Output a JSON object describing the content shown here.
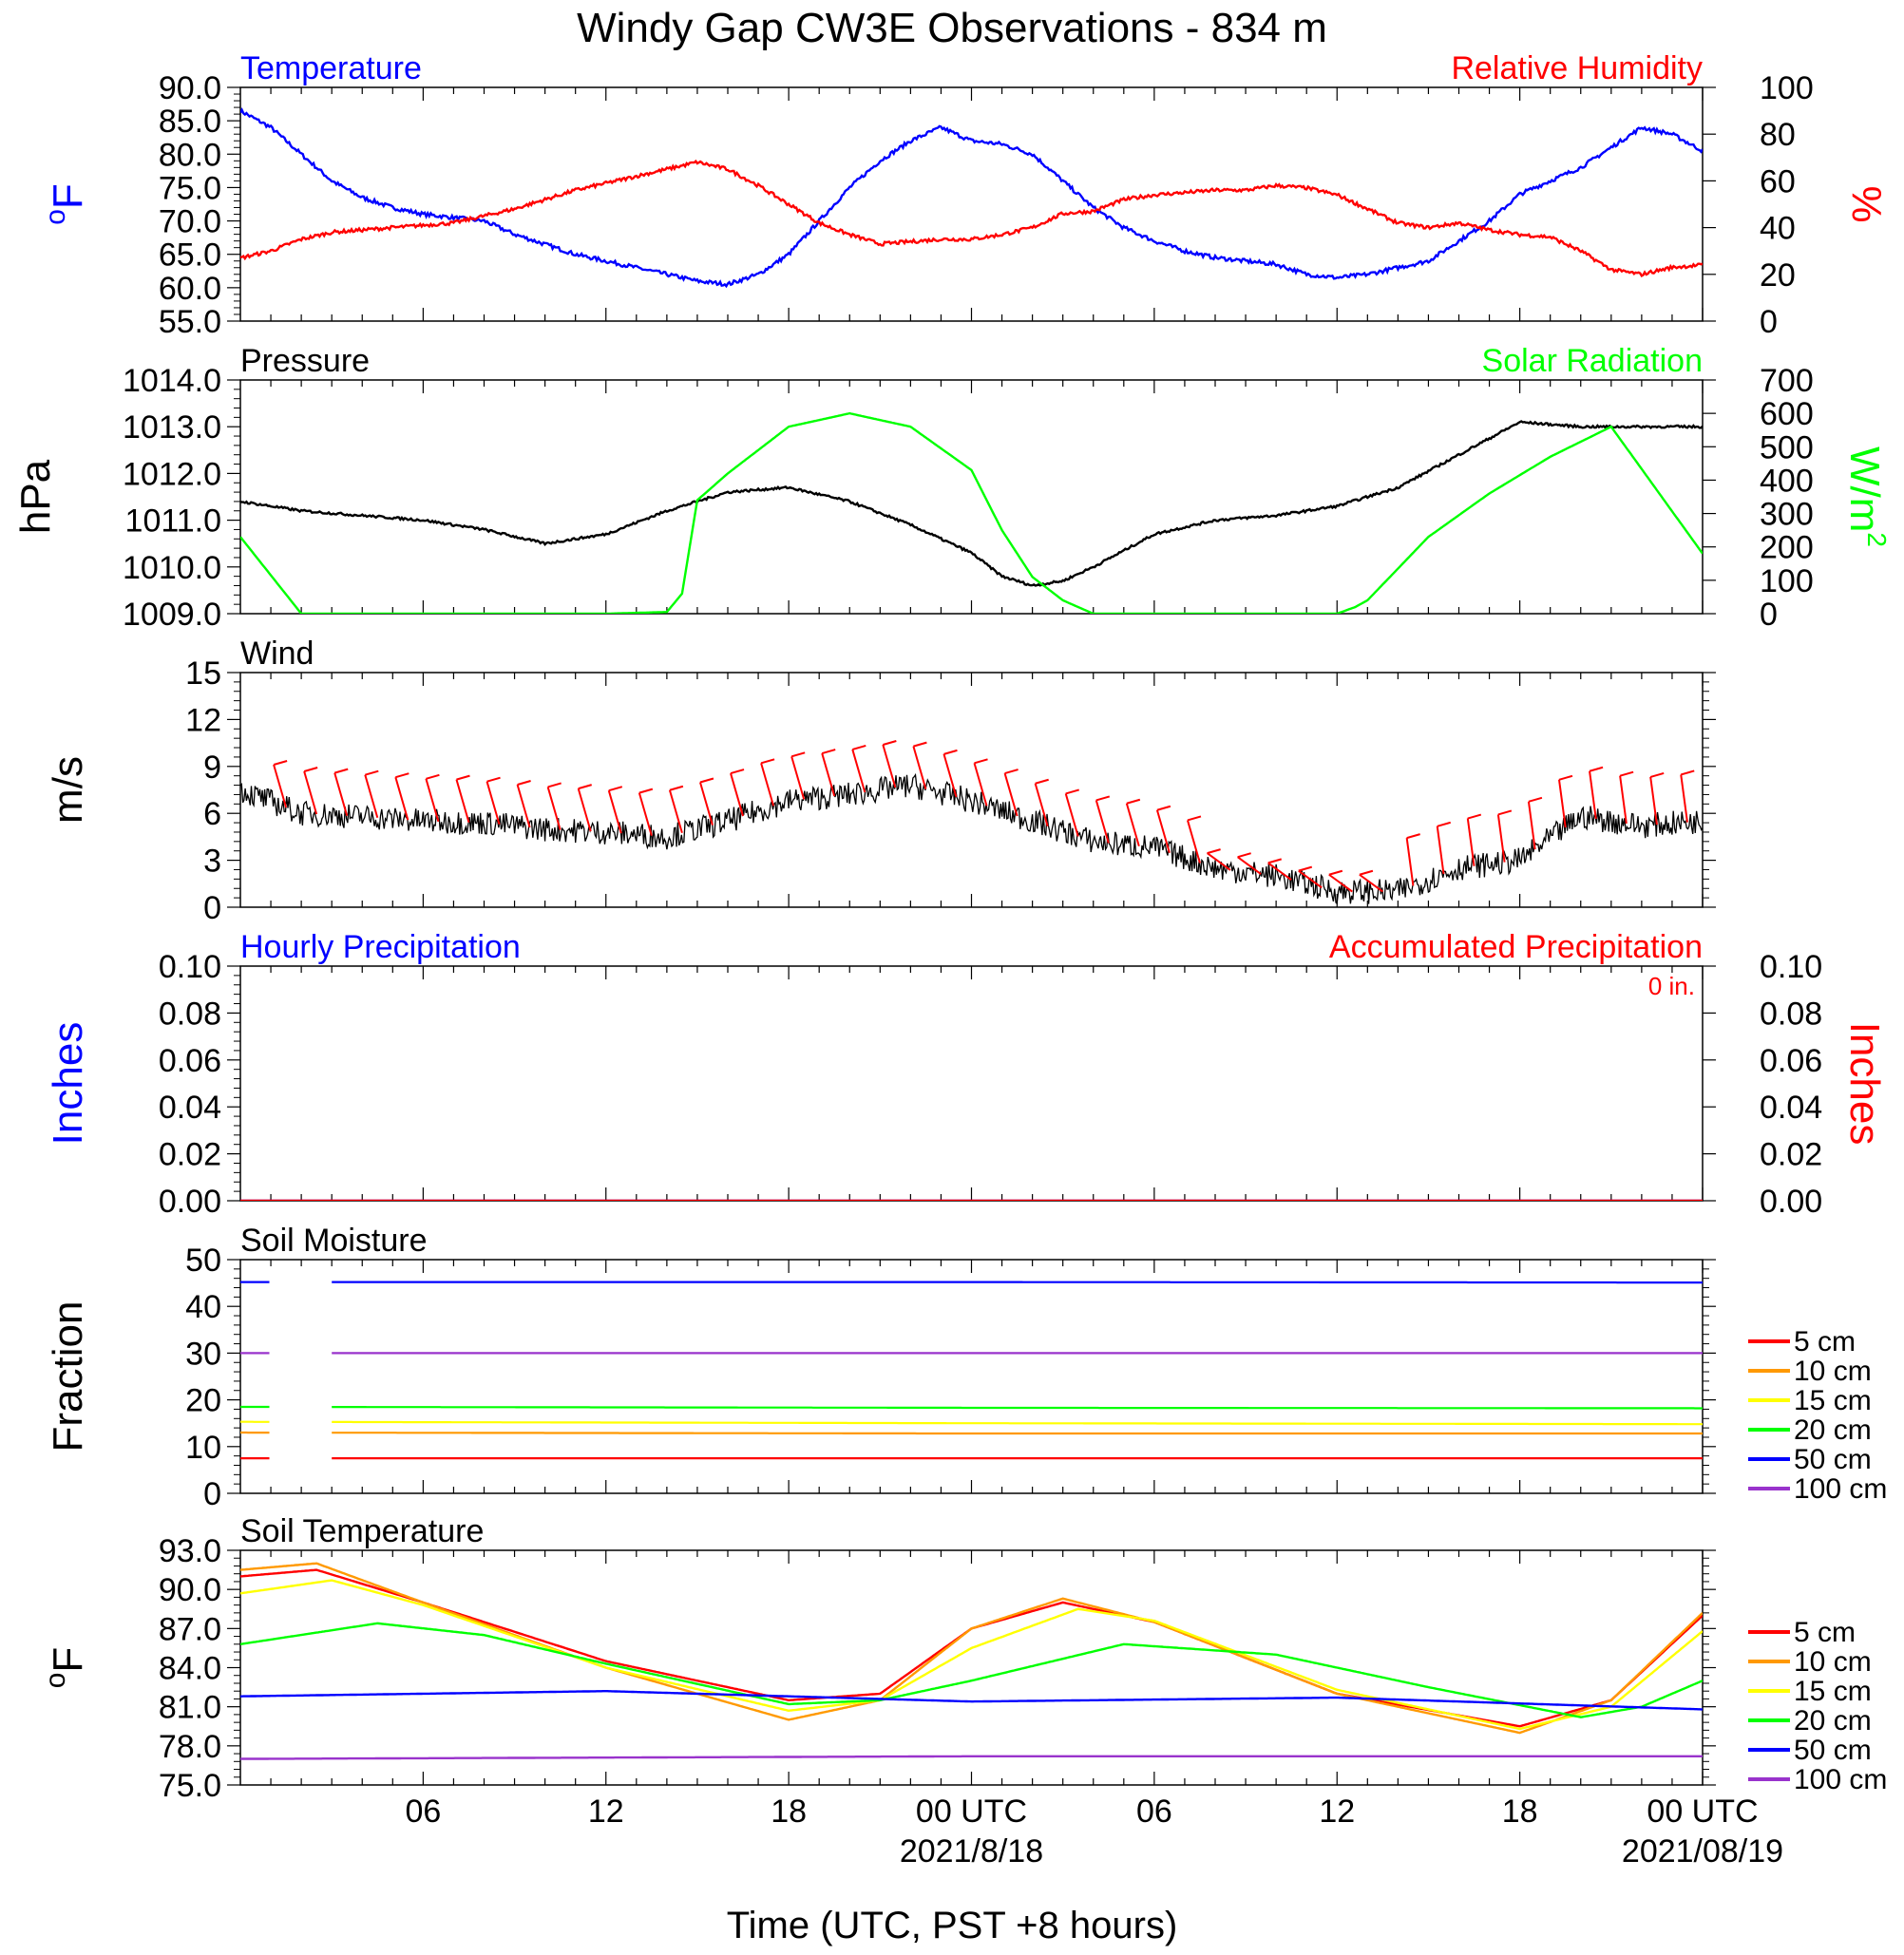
{
  "figure": {
    "title": "Windy Gap CW3E Observations - 834 m",
    "xlabel": "Time (UTC, PST +8 hours)",
    "x_tick_labels": [
      "06",
      "12",
      "18",
      "00 UTC",
      "06",
      "12",
      "18",
      "00 UTC"
    ],
    "date_labels": [
      "2021/8/18",
      "2021/08/19"
    ]
  },
  "colors": {
    "blue": "#0000ff",
    "red": "#ff0000",
    "green": "#00ff00",
    "black": "#000000",
    "orange": "#ff9900",
    "yellow": "#ffff00",
    "purple": "#9933cc"
  },
  "chart_data": [
    {
      "type": "line",
      "left_title": "Temperature",
      "right_title": "Relative Humidity",
      "left_ylabel": "oF",
      "right_ylabel": "%",
      "xlim_hours": [
        -24,
        24
      ],
      "ylim_left": [
        55,
        90
      ],
      "ylim_right": [
        0,
        100
      ],
      "left_tick_labels": [
        "55.0",
        "60.0",
        "65.0",
        "70.0",
        "75.0",
        "80.0",
        "85.0",
        "90.0"
      ],
      "right_tick_labels": [
        "0",
        "20",
        "40",
        "60",
        "80",
        "100"
      ],
      "series": [
        {
          "axis": "left",
          "color": "blue",
          "x": [
            -24,
            -23,
            -22,
            -21,
            -20,
            -19,
            -18,
            -17,
            -16,
            -15,
            -14,
            -13,
            -12,
            -11,
            -10,
            -9,
            -8,
            -7,
            -6,
            -5,
            -4,
            -3,
            -2,
            -1,
            0,
            1,
            2,
            3,
            4,
            5,
            6,
            7,
            8,
            9,
            10,
            11,
            12,
            13,
            14,
            15,
            16,
            17,
            18,
            19,
            20,
            21,
            22,
            23,
            24
          ],
          "y": [
            86.5,
            84,
            80,
            76,
            73.5,
            72,
            71,
            70.5,
            70,
            68,
            66.5,
            65,
            64,
            63,
            62,
            61,
            60.5,
            62,
            65,
            70,
            75,
            79,
            82,
            84,
            82,
            81.5,
            80,
            76,
            72,
            69,
            67,
            65.5,
            64.5,
            64,
            63.5,
            62,
            61.5,
            62,
            63,
            64,
            67,
            70,
            74,
            76,
            78,
            81,
            84,
            83,
            80.5
          ]
        },
        {
          "axis": "right",
          "color": "red",
          "x": [
            -24,
            -23,
            -22,
            -21,
            -20,
            -19,
            -18,
            -17,
            -16,
            -15,
            -14,
            -13,
            -12,
            -11,
            -10,
            -9,
            -8,
            -7,
            -6,
            -5,
            -4,
            -3,
            -2,
            -1,
            0,
            1,
            2,
            3,
            4,
            5,
            6,
            7,
            8,
            9,
            10,
            11,
            12,
            13,
            14,
            15,
            16,
            17,
            18,
            19,
            20,
            21,
            22,
            23,
            24
          ],
          "y": [
            27,
            30,
            35,
            38,
            39,
            40,
            41,
            42,
            45,
            48,
            52,
            56,
            59,
            62,
            65,
            68,
            65,
            58,
            50,
            42,
            37,
            33,
            34,
            35,
            35,
            37,
            40,
            46,
            47,
            52,
            54,
            55,
            56,
            56,
            58,
            57,
            54,
            48,
            42,
            40,
            42,
            39,
            37,
            36,
            30,
            22,
            20,
            23,
            24
          ]
        }
      ]
    },
    {
      "type": "line",
      "left_title": "Pressure",
      "right_title": "Solar Radiation",
      "left_ylabel": "hPa",
      "right_ylabel": "W/m",
      "right_ylabel_sup": "2",
      "xlim_hours": [
        -24,
        24
      ],
      "ylim_left": [
        1009,
        1014
      ],
      "ylim_right": [
        0,
        700
      ],
      "left_tick_labels": [
        "1009.0",
        "1010.0",
        "1011.0",
        "1012.0",
        "1013.0",
        "1014.0"
      ],
      "right_tick_labels": [
        "0",
        "100",
        "200",
        "300",
        "400",
        "500",
        "600",
        "700"
      ],
      "series": [
        {
          "axis": "left",
          "color": "black",
          "x": [
            -24,
            -22,
            -20,
            -18,
            -16,
            -14,
            -12,
            -10,
            -8,
            -6,
            -4,
            -2,
            0,
            1,
            2,
            3,
            4,
            6,
            8,
            10,
            12,
            14,
            16,
            18,
            20,
            22,
            24
          ],
          "y": [
            1011.4,
            1011.2,
            1011.1,
            1011.0,
            1010.8,
            1010.5,
            1010.7,
            1011.2,
            1011.6,
            1011.7,
            1011.4,
            1010.9,
            1010.3,
            1009.8,
            1009.6,
            1009.7,
            1010.0,
            1010.7,
            1011.0,
            1011.1,
            1011.3,
            1011.7,
            1012.4,
            1013.1,
            1013.0,
            1013.0,
            1013.0
          ]
        },
        {
          "axis": "right",
          "color": "green",
          "x": [
            -24,
            -22,
            -20,
            -16,
            -12,
            -10,
            -9.5,
            -9,
            -8,
            -6,
            -4,
            -2,
            0,
            1,
            2,
            3,
            4,
            8,
            11,
            12,
            12.6,
            13,
            15,
            17,
            19,
            21,
            24
          ],
          "y": [
            230,
            0,
            0,
            0,
            0,
            5,
            60,
            340,
            420,
            560,
            600,
            560,
            430,
            250,
            110,
            40,
            0,
            0,
            0,
            0,
            20,
            40,
            230,
            360,
            470,
            560,
            180
          ]
        }
      ]
    },
    {
      "type": "line",
      "left_title": "Wind",
      "left_ylabel": "m/s",
      "xlim_hours": [
        -24,
        24
      ],
      "ylim_left": [
        0,
        15
      ],
      "left_tick_labels": [
        "0",
        "3",
        "6",
        "9",
        "12",
        "15"
      ],
      "series": [
        {
          "axis": "left",
          "color": "black",
          "name": "",
          "x": [
            -24,
            -22,
            -20,
            -18,
            -16,
            -14,
            -12,
            -10,
            -8,
            -6,
            -4,
            -2,
            0,
            2,
            4,
            6,
            8,
            10,
            12,
            14,
            16,
            18,
            20,
            22,
            24
          ],
          "y": [
            7.5,
            6.0,
            5.8,
            5.5,
            5.4,
            5.0,
            4.8,
            4.5,
            5.5,
            6.8,
            7.2,
            7.8,
            6.8,
            5.5,
            4.2,
            3.8,
            2.5,
            2.0,
            1.0,
            1.0,
            2.5,
            3.0,
            5.8,
            5.2,
            5.5
          ]
        }
      ],
      "barbs_color": "red",
      "barbs_note": "wind barbs drawn along the speed trace"
    },
    {
      "type": "line",
      "left_title": "Hourly Precipitation",
      "right_title": "Accumulated Precipitation",
      "annotation": "0 in.",
      "left_ylabel": "Inches",
      "right_ylabel": "Inches",
      "xlim_hours": [
        -24,
        24
      ],
      "ylim_left": [
        0,
        0.1
      ],
      "ylim_right": [
        0,
        0.1
      ],
      "left_tick_labels": [
        "0.00",
        "0.02",
        "0.04",
        "0.06",
        "0.08",
        "0.10"
      ],
      "right_tick_labels": [
        "0.00",
        "0.02",
        "0.04",
        "0.06",
        "0.08",
        "0.10"
      ],
      "series": [
        {
          "axis": "left",
          "color": "blue",
          "x": [
            -24,
            24
          ],
          "y": [
            0,
            0
          ]
        },
        {
          "axis": "right",
          "color": "red",
          "x": [
            -24,
            24
          ],
          "y": [
            0,
            0
          ]
        }
      ]
    },
    {
      "type": "line",
      "left_title": "Soil Moisture",
      "left_ylabel": "Fraction",
      "xlim_hours": [
        -24,
        24
      ],
      "ylim_left": [
        0,
        50
      ],
      "left_tick_labels": [
        "0",
        "10",
        "20",
        "30",
        "40",
        "50"
      ],
      "legend": [
        "5 cm",
        "10 cm",
        "15 cm",
        "20 cm",
        "50 cm",
        "100 cm"
      ],
      "legend_colors": [
        "red",
        "orange",
        "yellow",
        "green",
        "blue",
        "purple"
      ],
      "gap_hours": [
        -23,
        -21
      ],
      "series": [
        {
          "name": "5 cm",
          "color": "red",
          "x": [
            -24,
            0,
            24
          ],
          "y": [
            7.5,
            7.5,
            7.5
          ]
        },
        {
          "name": "10 cm",
          "color": "orange",
          "x": [
            -24,
            0,
            24
          ],
          "y": [
            13,
            12.8,
            12.8
          ]
        },
        {
          "name": "15 cm",
          "color": "yellow",
          "x": [
            -24,
            0,
            24
          ],
          "y": [
            15.3,
            15,
            14.8
          ]
        },
        {
          "name": "20 cm",
          "color": "green",
          "x": [
            -24,
            0,
            24
          ],
          "y": [
            18.5,
            18.3,
            18.2
          ]
        },
        {
          "name": "50 cm",
          "color": "blue",
          "x": [
            -24,
            0,
            24
          ],
          "y": [
            45.2,
            45.2,
            45.1
          ]
        },
        {
          "name": "100 cm",
          "color": "purple",
          "x": [
            -24,
            0,
            24
          ],
          "y": [
            30,
            30,
            30
          ]
        }
      ]
    },
    {
      "type": "line",
      "left_title": "Soil Temperature",
      "left_ylabel": "oF",
      "xlim_hours": [
        -24,
        24
      ],
      "ylim_left": [
        75,
        93
      ],
      "left_tick_labels": [
        "75.0",
        "78.0",
        "81.0",
        "84.0",
        "87.0",
        "90.0",
        "93.0"
      ],
      "legend": [
        "5 cm",
        "10 cm",
        "15 cm",
        "20 cm",
        "50 cm",
        "100 cm"
      ],
      "legend_colors": [
        "red",
        "orange",
        "yellow",
        "green",
        "blue",
        "purple"
      ],
      "series": [
        {
          "name": "5 cm",
          "color": "red",
          "x": [
            -24,
            -21.5,
            -18,
            -12,
            -6,
            -3,
            0,
            3,
            6,
            12,
            18,
            21,
            24
          ],
          "y": [
            91,
            91.5,
            89,
            84.5,
            81.5,
            82,
            87,
            89,
            87.5,
            82,
            79.5,
            81.5,
            88
          ]
        },
        {
          "name": "10 cm",
          "color": "orange",
          "x": [
            -24,
            -21.5,
            -18,
            -12,
            -6,
            -3,
            0,
            3,
            6,
            12,
            18,
            21,
            24
          ],
          "y": [
            91.5,
            92,
            89,
            84,
            80,
            81.5,
            87,
            89.3,
            87.5,
            82,
            79,
            81.5,
            88.2
          ]
        },
        {
          "name": "15 cm",
          "color": "yellow",
          "x": [
            -24,
            -21,
            -18,
            -12,
            -6,
            -3,
            0,
            3.5,
            6,
            12,
            18,
            21,
            24
          ],
          "y": [
            89.7,
            90.7,
            88.8,
            84,
            80.7,
            81.5,
            85.5,
            88.5,
            87.6,
            82.3,
            79.3,
            81,
            86.8
          ]
        },
        {
          "name": "20 cm",
          "color": "green",
          "x": [
            -24,
            -19.5,
            -16,
            -12,
            -6,
            -3,
            0,
            5,
            10,
            15,
            20,
            22,
            24
          ],
          "y": [
            85.8,
            87.4,
            86.5,
            84.3,
            81.2,
            81.5,
            83,
            85.8,
            85,
            82.5,
            80.2,
            81,
            83
          ]
        },
        {
          "name": "50 cm",
          "color": "blue",
          "x": [
            -24,
            -12,
            0,
            12,
            24
          ],
          "y": [
            81.8,
            82.2,
            81.4,
            81.7,
            80.8
          ]
        },
        {
          "name": "100 cm",
          "color": "purple",
          "x": [
            -24,
            0,
            24
          ],
          "y": [
            77,
            77.2,
            77.2
          ]
        }
      ]
    }
  ]
}
